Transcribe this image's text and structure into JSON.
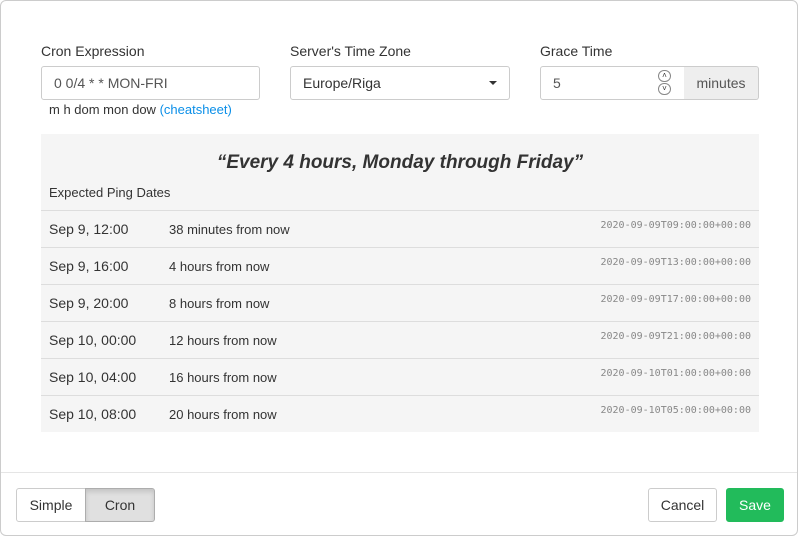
{
  "cron": {
    "label": "Cron Expression",
    "value": "0 0/4 * * MON-FRI",
    "hint": "m h dom mon dow",
    "cheatsheet": "(cheatsheet)"
  },
  "tz": {
    "label": "Server's Time Zone",
    "value": "Europe/Riga"
  },
  "grace": {
    "label": "Grace Time",
    "value": "5",
    "unit": "minutes"
  },
  "description": "“Every 4 hours, Monday through Friday”",
  "expected_label": "Expected Ping Dates",
  "rows": [
    {
      "date": "Sep 9, 12:00",
      "rel": "38 minutes from now",
      "iso": "2020-09-09T09:00:00+00:00"
    },
    {
      "date": "Sep 9, 16:00",
      "rel": "4 hours from now",
      "iso": "2020-09-09T13:00:00+00:00"
    },
    {
      "date": "Sep 9, 20:00",
      "rel": "8 hours from now",
      "iso": "2020-09-09T17:00:00+00:00"
    },
    {
      "date": "Sep 10, 00:00",
      "rel": "12 hours from now",
      "iso": "2020-09-09T21:00:00+00:00"
    },
    {
      "date": "Sep 10, 04:00",
      "rel": "16 hours from now",
      "iso": "2020-09-10T01:00:00+00:00"
    },
    {
      "date": "Sep 10, 08:00",
      "rel": "20 hours from now",
      "iso": "2020-09-10T05:00:00+00:00"
    }
  ],
  "footer": {
    "simple": "Simple",
    "cron": "Cron",
    "cancel": "Cancel",
    "save": "Save"
  },
  "colors": {
    "save": "#22bb5b",
    "link": "#0b8fe8"
  }
}
